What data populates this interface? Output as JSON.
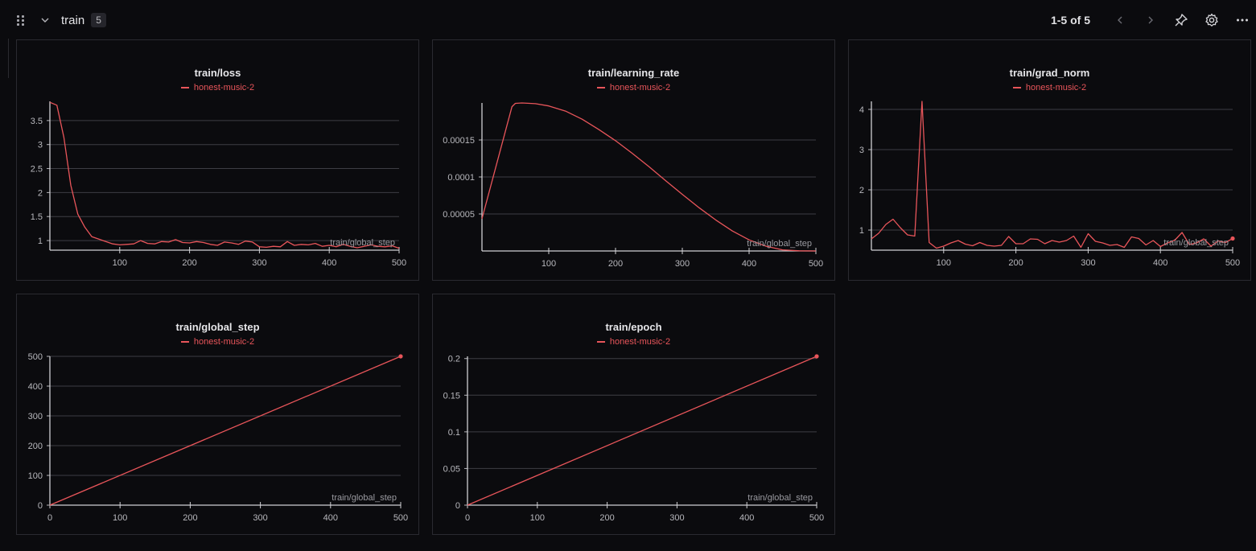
{
  "section": {
    "title": "train",
    "count": "5"
  },
  "pager": {
    "text": "1-5 of 5"
  },
  "icons": {
    "grip": "drag-handle-icon",
    "collapse": "chevron-down-icon",
    "prev": "chevron-left-icon",
    "next": "chevron-right-icon",
    "pin": "pin-icon",
    "settings": "gear-icon",
    "more": "more-horizontal-icon"
  },
  "colors": {
    "series": "#e8555a",
    "background": "#0b0b0e",
    "grid": "#3e3e44"
  },
  "panels": [
    {
      "title": "train/loss",
      "legend": "honest-music-2"
    },
    {
      "title": "train/learning_rate",
      "legend": "honest-music-2"
    },
    {
      "title": "train/grad_norm",
      "legend": "honest-music-2"
    },
    {
      "title": "train/global_step",
      "legend": "honest-music-2"
    },
    {
      "title": "train/epoch",
      "legend": "honest-music-2"
    }
  ],
  "chart_data": [
    {
      "type": "line",
      "title": "train/loss",
      "xlabel": "train/global_step",
      "ylabel": "",
      "xlim": [
        0,
        500
      ],
      "ylim": [
        0.8,
        3.9
      ],
      "xticks": [
        100,
        200,
        300,
        400,
        500
      ],
      "yticks": [
        1,
        1.5,
        2,
        2.5,
        3,
        3.5
      ],
      "ytick_labels": [
        "1",
        "1.5",
        "2",
        "2.5",
        "3",
        "3.5"
      ],
      "grid": true,
      "series": [
        {
          "name": "honest-music-2",
          "x": [
            0,
            10,
            20,
            30,
            40,
            50,
            60,
            70,
            80,
            90,
            100,
            110,
            120,
            130,
            140,
            150,
            160,
            170,
            180,
            190,
            200,
            210,
            220,
            230,
            240,
            250,
            260,
            270,
            280,
            290,
            300,
            310,
            320,
            330,
            340,
            350,
            360,
            370,
            380,
            390,
            400,
            410,
            420,
            430,
            440,
            450,
            460,
            470,
            480,
            490,
            500
          ],
          "y": [
            3.88,
            3.82,
            3.15,
            2.15,
            1.55,
            1.28,
            1.08,
            1.03,
            0.98,
            0.93,
            0.91,
            0.92,
            0.93,
            1.0,
            0.94,
            0.93,
            0.98,
            0.97,
            1.02,
            0.96,
            0.95,
            0.98,
            0.96,
            0.92,
            0.9,
            0.97,
            0.95,
            0.92,
            0.99,
            0.97,
            0.87,
            0.86,
            0.88,
            0.87,
            0.98,
            0.9,
            0.92,
            0.91,
            0.94,
            0.88,
            0.9,
            0.87,
            0.92,
            0.88,
            0.85,
            0.88,
            0.91,
            0.88,
            0.87,
            0.89,
            0.84
          ]
        }
      ]
    },
    {
      "type": "line",
      "title": "train/learning_rate",
      "xlabel": "train/global_step",
      "ylabel": "",
      "xlim": [
        0,
        500
      ],
      "ylim": [
        0,
        0.0002
      ],
      "xticks": [
        100,
        200,
        300,
        400,
        500
      ],
      "yticks": [
        5e-05,
        0.0001,
        0.00015
      ],
      "ytick_labels": [
        "0.00005",
        "0.0001",
        "0.00015"
      ],
      "grid": true,
      "series": [
        {
          "name": "honest-music-2",
          "x": [
            0,
            45,
            50,
            60,
            80,
            100,
            125,
            150,
            175,
            200,
            225,
            250,
            275,
            300,
            325,
            350,
            375,
            400,
            425,
            450,
            475,
            500
          ],
          "y": [
            4.35e-05,
            0.000195,
            0.0001995,
            0.0002,
            0.000199,
            0.000196,
            0.000189,
            0.000178,
            0.000164,
            0.000149,
            0.000132,
            0.000114,
            9.5e-05,
            7.65e-05,
            5.85e-05,
            4.2e-05,
            2.7e-05,
            1.5e-05,
            6.5e-06,
            1.5e-06,
            2e-07,
            0.0
          ]
        }
      ]
    },
    {
      "type": "line",
      "title": "train/grad_norm",
      "xlabel": "train/global_step",
      "ylabel": "",
      "xlim": [
        0,
        500
      ],
      "ylim": [
        0.5,
        4.2
      ],
      "xticks": [
        100,
        200,
        300,
        400,
        500
      ],
      "yticks": [
        1,
        2,
        3,
        4
      ],
      "ytick_labels": [
        "1",
        "2",
        "3",
        "4"
      ],
      "grid": true,
      "series": [
        {
          "name": "honest-music-2",
          "x": [
            0,
            10,
            20,
            30,
            40,
            50,
            60,
            70,
            80,
            90,
            100,
            110,
            120,
            130,
            140,
            150,
            160,
            170,
            180,
            190,
            200,
            210,
            220,
            230,
            240,
            250,
            260,
            270,
            280,
            290,
            300,
            310,
            320,
            330,
            340,
            350,
            360,
            370,
            380,
            390,
            400,
            410,
            420,
            430,
            440,
            450,
            460,
            470,
            480,
            490,
            500
          ],
          "y": [
            0.78,
            0.92,
            1.14,
            1.27,
            1.06,
            0.88,
            0.85,
            4.2,
            0.69,
            0.55,
            0.6,
            0.68,
            0.74,
            0.65,
            0.61,
            0.69,
            0.62,
            0.6,
            0.62,
            0.84,
            0.66,
            0.66,
            0.78,
            0.77,
            0.66,
            0.74,
            0.7,
            0.74,
            0.85,
            0.57,
            0.91,
            0.72,
            0.68,
            0.62,
            0.64,
            0.57,
            0.83,
            0.79,
            0.63,
            0.74,
            0.59,
            0.68,
            0.75,
            0.94,
            0.64,
            0.68,
            0.78,
            0.6,
            0.73,
            0.69,
            0.79
          ]
        }
      ]
    },
    {
      "type": "line",
      "title": "train/global_step",
      "xlabel": "train/global_step",
      "ylabel": "",
      "xlim": [
        0,
        500
      ],
      "ylim": [
        0,
        500
      ],
      "xticks": [
        0,
        100,
        200,
        300,
        400,
        500
      ],
      "yticks": [
        0,
        100,
        200,
        300,
        400,
        500
      ],
      "ytick_labels": [
        "0",
        "100",
        "200",
        "300",
        "400",
        "500"
      ],
      "grid": true,
      "series": [
        {
          "name": "honest-music-2",
          "x": [
            0,
            500
          ],
          "y": [
            0,
            500
          ]
        }
      ]
    },
    {
      "type": "line",
      "title": "train/epoch",
      "xlabel": "train/global_step",
      "ylabel": "",
      "xlim": [
        0,
        500
      ],
      "ylim": [
        0,
        0.203
      ],
      "xticks": [
        0,
        100,
        200,
        300,
        400,
        500
      ],
      "yticks": [
        0,
        0.05,
        0.1,
        0.15,
        0.2
      ],
      "ytick_labels": [
        "0",
        "0.05",
        "0.1",
        "0.15",
        "0.2"
      ],
      "grid": true,
      "series": [
        {
          "name": "honest-music-2",
          "x": [
            0,
            500
          ],
          "y": [
            0,
            0.203
          ]
        }
      ]
    }
  ]
}
